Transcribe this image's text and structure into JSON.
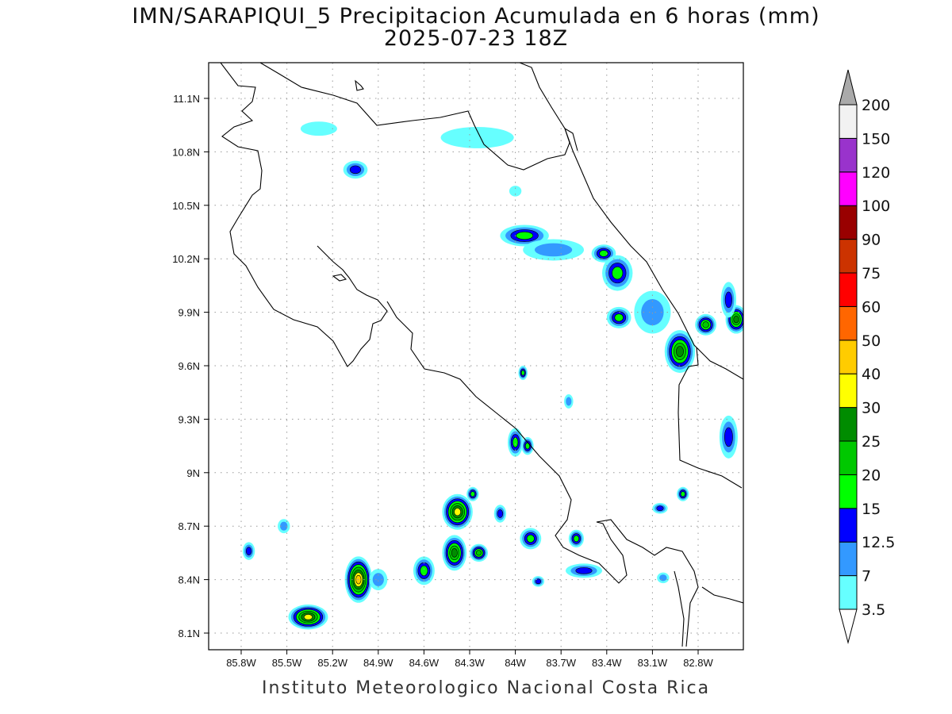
{
  "title": {
    "line1": "IMN/SARAPIQUI_5 Precipitacion Acumulada en 6 horas (mm)",
    "line2": "2025-07-23 18Z"
  },
  "footer": "Instituto Meteorologico Nacional Costa Rica",
  "map": {
    "lon_range": [
      -86.01,
      -82.5
    ],
    "lat_range": [
      7.99,
      11.3
    ],
    "lon_ticks": [
      {
        "v": -85.8,
        "label": "85.8W"
      },
      {
        "v": -85.5,
        "label": "85.5W"
      },
      {
        "v": -85.2,
        "label": "85.2W"
      },
      {
        "v": -84.9,
        "label": "84.9W"
      },
      {
        "v": -84.6,
        "label": "84.6W"
      },
      {
        "v": -84.3,
        "label": "84.3W"
      },
      {
        "v": -84.0,
        "label": "84W"
      },
      {
        "v": -83.7,
        "label": "83.7W"
      },
      {
        "v": -83.4,
        "label": "83.4W"
      },
      {
        "v": -83.1,
        "label": "83.1W"
      },
      {
        "v": -82.8,
        "label": "82.8W"
      }
    ],
    "lat_ticks": [
      {
        "v": 11.1,
        "label": "11.1N"
      },
      {
        "v": 10.8,
        "label": "10.8N"
      },
      {
        "v": 10.5,
        "label": "10.5N"
      },
      {
        "v": 10.2,
        "label": "10.2N"
      },
      {
        "v": 9.9,
        "label": "9.9N"
      },
      {
        "v": 9.6,
        "label": "9.6N"
      },
      {
        "v": 9.3,
        "label": "9.3N"
      },
      {
        "v": 9.0,
        "label": "9N"
      },
      {
        "v": 8.7,
        "label": "8.7N"
      },
      {
        "v": 8.4,
        "label": "8.4N"
      },
      {
        "v": 8.1,
        "label": "8.1N"
      }
    ],
    "precip_cells": [
      {
        "lon": -85.03,
        "lat": 8.4,
        "rlon": 0.09,
        "rlat": 0.13,
        "max": 40
      },
      {
        "lon": -85.36,
        "lat": 8.19,
        "rlon": 0.13,
        "rlat": 0.07,
        "max": 30
      },
      {
        "lon": -84.9,
        "lat": 8.4,
        "rlon": 0.06,
        "rlat": 0.06,
        "max": 7
      },
      {
        "lon": -84.6,
        "lat": 8.45,
        "rlon": 0.07,
        "rlat": 0.08,
        "max": 15
      },
      {
        "lon": -84.4,
        "lat": 8.55,
        "rlon": 0.08,
        "rlat": 0.1,
        "max": 25
      },
      {
        "lon": -84.24,
        "lat": 8.55,
        "rlon": 0.06,
        "rlat": 0.05,
        "max": 20
      },
      {
        "lon": -84.38,
        "lat": 8.78,
        "rlon": 0.1,
        "rlat": 0.1,
        "max": 30
      },
      {
        "lon": -84.28,
        "lat": 8.88,
        "rlon": 0.04,
        "rlat": 0.04,
        "max": 15
      },
      {
        "lon": -84.1,
        "lat": 8.77,
        "rlon": 0.04,
        "rlat": 0.05,
        "max": 12.5
      },
      {
        "lon": -84.0,
        "lat": 9.17,
        "rlon": 0.05,
        "rlat": 0.08,
        "max": 15
      },
      {
        "lon": -83.92,
        "lat": 9.15,
        "rlon": 0.04,
        "rlat": 0.05,
        "max": 15
      },
      {
        "lon": -83.9,
        "lat": 8.63,
        "rlon": 0.07,
        "rlat": 0.06,
        "max": 15
      },
      {
        "lon": -83.6,
        "lat": 8.63,
        "rlon": 0.05,
        "rlat": 0.05,
        "max": 15
      },
      {
        "lon": -83.55,
        "lat": 8.45,
        "rlon": 0.12,
        "rlat": 0.04,
        "max": 12.5
      },
      {
        "lon": -83.85,
        "lat": 8.39,
        "rlon": 0.04,
        "rlat": 0.03,
        "max": 12.5
      },
      {
        "lon": -83.95,
        "lat": 9.56,
        "rlon": 0.03,
        "rlat": 0.04,
        "max": 15
      },
      {
        "lon": -83.94,
        "lat": 10.33,
        "rlon": 0.16,
        "rlat": 0.06,
        "max": 15
      },
      {
        "lon": -83.75,
        "lat": 10.25,
        "rlon": 0.2,
        "rlat": 0.06,
        "max": 7
      },
      {
        "lon": -83.42,
        "lat": 10.23,
        "rlon": 0.08,
        "rlat": 0.05,
        "max": 15
      },
      {
        "lon": -83.33,
        "lat": 10.12,
        "rlon": 0.1,
        "rlat": 0.1,
        "max": 15
      },
      {
        "lon": -83.32,
        "lat": 9.87,
        "rlon": 0.08,
        "rlat": 0.06,
        "max": 15
      },
      {
        "lon": -83.1,
        "lat": 9.9,
        "rlon": 0.12,
        "rlat": 0.12,
        "max": 7
      },
      {
        "lon": -82.92,
        "lat": 9.68,
        "rlon": 0.1,
        "rlat": 0.12,
        "max": 25
      },
      {
        "lon": -82.75,
        "lat": 9.83,
        "rlon": 0.07,
        "rlat": 0.06,
        "max": 20
      },
      {
        "lon": -82.55,
        "lat": 9.86,
        "rlon": 0.07,
        "rlat": 0.08,
        "max": 25
      },
      {
        "lon": -82.6,
        "lat": 9.97,
        "rlon": 0.05,
        "rlat": 0.1,
        "max": 12.5
      },
      {
        "lon": -82.6,
        "lat": 9.2,
        "rlon": 0.06,
        "rlat": 0.12,
        "max": 12.5
      },
      {
        "lon": -82.9,
        "lat": 8.88,
        "rlon": 0.04,
        "rlat": 0.04,
        "max": 15
      },
      {
        "lon": -83.05,
        "lat": 8.8,
        "rlon": 0.05,
        "rlat": 0.03,
        "max": 12.5
      },
      {
        "lon": -83.03,
        "lat": 8.41,
        "rlon": 0.04,
        "rlat": 0.03,
        "max": 7
      },
      {
        "lon": -85.05,
        "lat": 10.7,
        "rlon": 0.08,
        "rlat": 0.05,
        "max": 12.5
      },
      {
        "lon": -85.29,
        "lat": 10.93,
        "rlon": 0.12,
        "rlat": 0.04,
        "max": 3.5
      },
      {
        "lon": -84.25,
        "lat": 10.88,
        "rlon": 0.24,
        "rlat": 0.06,
        "max": 3.5
      },
      {
        "lon": -85.75,
        "lat": 8.56,
        "rlon": 0.04,
        "rlat": 0.05,
        "max": 12.5
      },
      {
        "lon": -85.52,
        "lat": 8.7,
        "rlon": 0.04,
        "rlat": 0.04,
        "max": 7
      },
      {
        "lon": -83.65,
        "lat": 9.4,
        "rlon": 0.03,
        "rlat": 0.04,
        "max": 7
      },
      {
        "lon": -84.0,
        "lat": 10.58,
        "rlon": 0.04,
        "rlat": 0.03,
        "max": 3.5
      }
    ]
  },
  "colorbar": {
    "levels": [
      "3.5",
      "7",
      "12.5",
      "15",
      "20",
      "25",
      "30",
      "40",
      "50",
      "60",
      "75",
      "90",
      "100",
      "120",
      "150",
      "200"
    ],
    "colors": [
      "#66ffff",
      "#3399ff",
      "#0000ff",
      "#00ff00",
      "#00c800",
      "#008c00",
      "#ffff00",
      "#ffcc00",
      "#ff6600",
      "#ff0000",
      "#cc3300",
      "#990000",
      "#ff00ff",
      "#9933cc",
      "#f2f2f2"
    ],
    "over_color": "#aaaaaa",
    "under_color": "#ffffff"
  }
}
